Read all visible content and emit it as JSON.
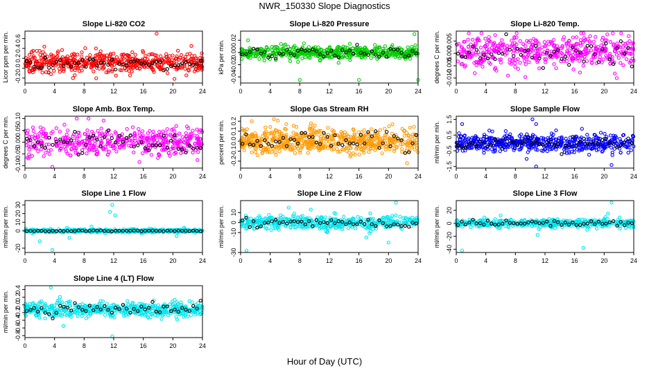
{
  "figure": {
    "title": "NWR_150330  Slope Diagnostics",
    "xlabel": "Hour of Day (UTC)"
  },
  "chart_data": [
    {
      "type": "scatter",
      "title": "Slope Li-820 CO2",
      "xlabel": "",
      "ylabel": "Licor ppm per min.",
      "xlim": [
        0,
        24
      ],
      "xticks": [
        0,
        4,
        8,
        12,
        16,
        20,
        24
      ],
      "ylim": [
        -0.3,
        0.75
      ],
      "yticks": [
        -0.2,
        0.0,
        0.2,
        0.4,
        0.6
      ],
      "ytick_labels": [
        "-0.2",
        "0.0",
        "0.2",
        "0.4",
        "0.6"
      ],
      "series": [
        {
          "color": "#ff0000",
          "center": 0.12,
          "spread": 0.12,
          "n": 520,
          "outliers": [
            [
              17.8,
              0.7
            ],
            [
              6.5,
              -0.2
            ],
            [
              12.3,
              -0.15
            ],
            [
              22.5,
              0.45
            ],
            [
              9.6,
              0.4
            ],
            [
              1.6,
              0.35
            ]
          ]
        },
        {
          "color": "#000000",
          "center": 0.08,
          "spread": 0.08,
          "n": 48
        }
      ]
    },
    {
      "type": "scatter",
      "title": "Slope Li-820 Pressure",
      "xlabel": "",
      "ylabel": "kPa per min.",
      "xlim": [
        0,
        24
      ],
      "xticks": [
        0,
        4,
        8,
        12,
        16,
        20,
        24
      ],
      "ylim": [
        -0.05,
        0.035
      ],
      "yticks": [
        -0.04,
        -0.02,
        0.0,
        0.02
      ],
      "ytick_labels": [
        "-0.04",
        "-0.02",
        "0.00",
        "0.02"
      ],
      "series": [
        {
          "color": "#00cc00",
          "center": 0.0,
          "spread": 0.007,
          "n": 520,
          "outliers": [
            [
              8.0,
              -0.045
            ],
            [
              16.0,
              -0.045
            ],
            [
              24.0,
              -0.045
            ],
            [
              23.5,
              0.03
            ],
            [
              1.0,
              0.02
            ]
          ]
        },
        {
          "color": "#000000",
          "center": 0.0,
          "spread": 0.005,
          "n": 48
        }
      ]
    },
    {
      "type": "scatter",
      "title": "Slope Li-820 Temp.",
      "xlabel": "",
      "ylabel": "degrees C per min.",
      "xlim": [
        0,
        24
      ],
      "xticks": [
        0,
        4,
        8,
        12,
        16,
        20,
        24
      ],
      "ylim": [
        -0.012,
        0.009
      ],
      "yticks": [
        -0.01,
        -0.005,
        0.0,
        0.005
      ],
      "ytick_labels": [
        "-0.010",
        "-0.005",
        "0.000",
        "0.005"
      ],
      "series": [
        {
          "color": "#ff00ff",
          "center": 0.001,
          "spread": 0.004,
          "n": 480,
          "outliers": [
            [
              21.7,
              -0.01
            ],
            [
              7.0,
              -0.009
            ],
            [
              2.5,
              -0.008
            ]
          ]
        },
        {
          "color": "#000000",
          "center": 0.0,
          "spread": 0.003,
          "n": 48
        }
      ]
    },
    {
      "type": "scatter",
      "title": "Slope Amb. Box Temp.",
      "xlabel": "",
      "ylabel": "degrees C per min.",
      "xlim": [
        0,
        24
      ],
      "xticks": [
        0,
        4,
        8,
        12,
        16,
        20,
        24
      ],
      "ylim": [
        -0.11,
        0.11
      ],
      "yticks": [
        -0.1,
        -0.05,
        0.0,
        0.05,
        0.1
      ],
      "ytick_labels": [
        "-0.10",
        "-0.05",
        "0.00",
        "0.05",
        "0.10"
      ],
      "series": [
        {
          "color": "#ff00ff",
          "center": 0.0,
          "spread": 0.035,
          "n": 480,
          "outliers": [
            [
              3.7,
              -0.105
            ],
            [
              7.0,
              0.1
            ],
            [
              8.6,
              0.1
            ]
          ]
        },
        {
          "color": "#000000",
          "center": 0.0,
          "spread": 0.03,
          "n": 48
        }
      ]
    },
    {
      "type": "scatter",
      "title": "Slope Gas Stream RH",
      "xlabel": "",
      "ylabel": "percent per min.",
      "xlim": [
        0,
        24
      ],
      "xticks": [
        0,
        4,
        8,
        12,
        16,
        20,
        24
      ],
      "ylim": [
        -0.27,
        0.25
      ],
      "yticks": [
        -0.2,
        -0.1,
        0.0,
        0.1,
        0.2
      ],
      "ytick_labels": [
        "-0.2",
        "-0.1",
        "0.0",
        "0.1",
        "0.2"
      ],
      "series": [
        {
          "color": "#ff9900",
          "center": 0.0,
          "spread": 0.08,
          "n": 600,
          "outliers": [
            [
              4.5,
              0.22
            ],
            [
              1.5,
              0.2
            ],
            [
              22.5,
              -0.22
            ]
          ]
        },
        {
          "color": "#000000",
          "center": 0.0,
          "spread": 0.06,
          "n": 48
        }
      ]
    },
    {
      "type": "scatter",
      "title": "Slope Sample Flow",
      "xlabel": "",
      "ylabel": "ml/min per min.",
      "xlim": [
        0,
        24
      ],
      "xticks": [
        0,
        4,
        8,
        12,
        16,
        20,
        24
      ],
      "ylim": [
        -1.6,
        1.7
      ],
      "yticks": [
        -1.5,
        -0.5,
        0.5,
        1.5
      ],
      "ytick_labels": [
        "-1.5",
        "-0.5",
        "0.5",
        "1.5"
      ],
      "series": [
        {
          "color": "#0000ff",
          "center": 0.0,
          "spread": 0.35,
          "n": 540,
          "outliers": [
            [
              10.3,
              1.5
            ],
            [
              10.8,
              1.2
            ],
            [
              0.8,
              1.2
            ],
            [
              10.8,
              -1.5
            ],
            [
              21.0,
              -1.4
            ],
            [
              13.5,
              0.8
            ],
            [
              17.0,
              0.9
            ]
          ]
        },
        {
          "color": "#000000",
          "center": 0.0,
          "spread": 0.25,
          "n": 48
        }
      ]
    },
    {
      "type": "scatter",
      "title": "Slope Line 1 Flow",
      "xlabel": "",
      "ylabel": "ml/min per min.",
      "xlim": [
        0,
        24
      ],
      "xticks": [
        0,
        4,
        8,
        12,
        16,
        20,
        24
      ],
      "ylim": [
        -25,
        35
      ],
      "yticks": [
        -20,
        0,
        10,
        20,
        30
      ],
      "ytick_labels": [
        "-20",
        "0",
        "10",
        "20",
        "30"
      ],
      "series": [
        {
          "color": "#00e5ee",
          "center": 0.0,
          "spread": 1.2,
          "n": 420,
          "outliers": [
            [
              11.8,
              30
            ],
            [
              11.5,
              22
            ],
            [
              12.2,
              18
            ],
            [
              3.7,
              -22
            ],
            [
              2.0,
              -12
            ],
            [
              6.0,
              -8
            ],
            [
              9.0,
              5
            ],
            [
              20.5,
              -6
            ]
          ]
        },
        {
          "color": "#000000",
          "center": 0.0,
          "spread": 0.3,
          "n": 48
        }
      ]
    },
    {
      "type": "scatter",
      "title": "Slope Line 2 Flow",
      "xlabel": "",
      "ylabel": "ml/min per min.",
      "xlim": [
        0,
        24
      ],
      "xticks": [
        0,
        4,
        8,
        12,
        16,
        20,
        24
      ],
      "ylim": [
        -30,
        22
      ],
      "yticks": [
        -30,
        -10,
        0,
        10
      ],
      "ytick_labels": [
        "-30",
        "-10",
        "0",
        "10"
      ],
      "series": [
        {
          "color": "#00e5ee",
          "center": 0.0,
          "spread": 4.0,
          "n": 460,
          "outliers": [
            [
              21.0,
              20
            ],
            [
              20.0,
              -20
            ],
            [
              0.8,
              -28
            ],
            [
              6.5,
              15
            ],
            [
              9.5,
              13
            ],
            [
              17.0,
              -15
            ]
          ]
        },
        {
          "color": "#000000",
          "center": 0.0,
          "spread": 3.0,
          "n": 48
        }
      ]
    },
    {
      "type": "scatter",
      "title": "Slope Line 3 Flow",
      "xlabel": "",
      "ylabel": "ml/min per min.",
      "xlim": [
        0,
        24
      ],
      "xticks": [
        0,
        4,
        8,
        12,
        16,
        20,
        24
      ],
      "ylim": [
        -45,
        35
      ],
      "yticks": [
        -40,
        -20,
        0,
        20
      ],
      "ytick_labels": [
        "-40",
        "-20",
        "0",
        "20"
      ],
      "series": [
        {
          "color": "#00e5ee",
          "center": 0.0,
          "spread": 4.0,
          "n": 460,
          "outliers": [
            [
              21.0,
              32
            ],
            [
              0.8,
              -42
            ],
            [
              17.2,
              -38
            ],
            [
              11.0,
              -18
            ],
            [
              6.0,
              12
            ],
            [
              20.5,
              15
            ]
          ]
        },
        {
          "color": "#000000",
          "center": 0.0,
          "spread": 3.0,
          "n": 48
        }
      ]
    },
    {
      "type": "scatter",
      "title": "Slope Line 4 (LT) Flow",
      "xlabel": "",
      "ylabel": "ml/min per min.",
      "xlim": [
        0,
        24
      ],
      "xticks": [
        0,
        4,
        8,
        12,
        16,
        20,
        24
      ],
      "ylim": [
        -0.85,
        0.5
      ],
      "yticks": [
        -0.8,
        -0.6,
        -0.4,
        -0.2,
        0.0,
        0.2,
        0.4
      ],
      "ytick_labels": [
        "-0.8",
        "-0.6",
        "-0.4",
        "-0.2",
        "0.0",
        "0.2",
        "0.4"
      ],
      "series": [
        {
          "color": "#00e5ee",
          "center": -0.12,
          "spread": 0.12,
          "n": 520,
          "outliers": [
            [
              11.8,
              -0.82
            ],
            [
              5.2,
              -0.55
            ],
            [
              3.5,
              0.45
            ]
          ]
        },
        {
          "color": "#000000",
          "center": -0.1,
          "spread": 0.1,
          "n": 48
        }
      ]
    }
  ]
}
